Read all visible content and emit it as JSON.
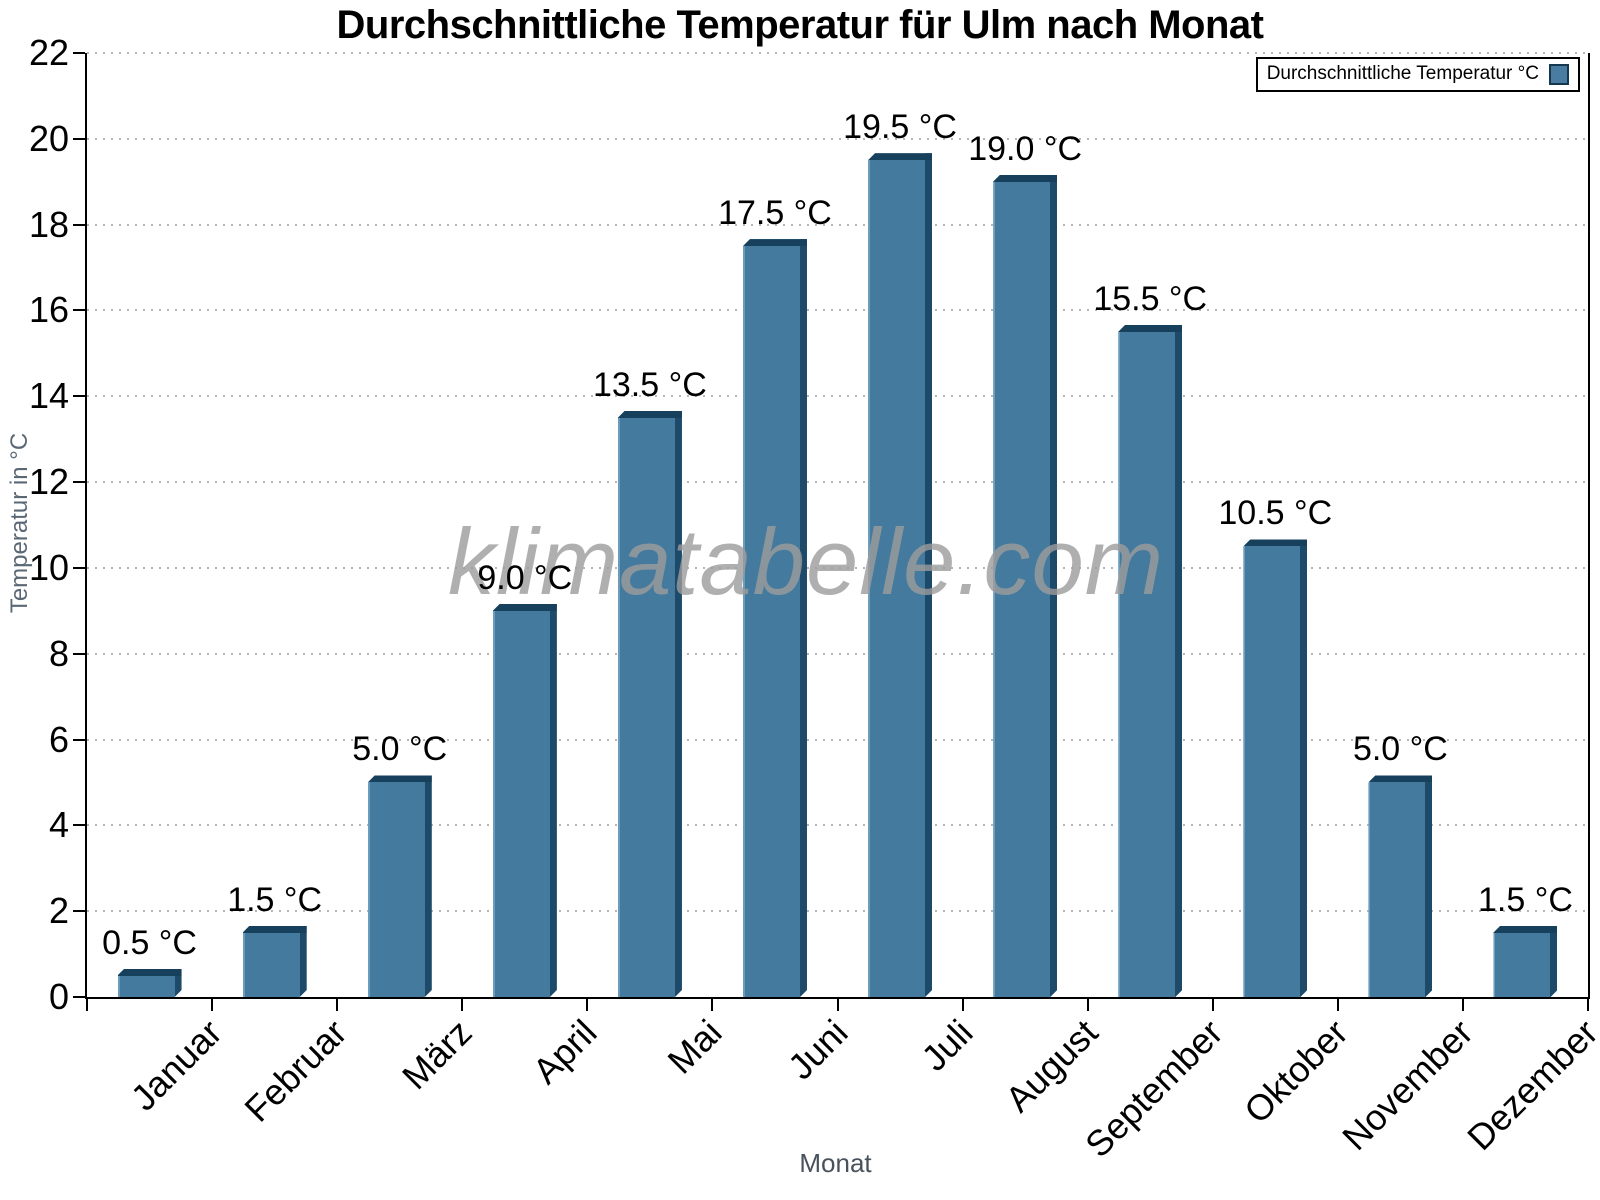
{
  "chart_data": {
    "type": "bar",
    "title": "Durchschnittliche Temperatur für Ulm nach Monat",
    "xlabel": "Monat",
    "ylabel": "Temperatur in °C",
    "legend": {
      "label": "Durchschnittliche Temperatur °C",
      "position": "top-right"
    },
    "categories": [
      "Januar",
      "Februar",
      "März",
      "April",
      "Mai",
      "Juni",
      "Juli",
      "August",
      "September",
      "Oktober",
      "November",
      "Dezember"
    ],
    "values": [
      0.5,
      1.5,
      5.0,
      9.0,
      13.5,
      17.5,
      19.5,
      19.0,
      15.5,
      10.5,
      5.0,
      1.5
    ],
    "value_labels": [
      "0.5 °C",
      "1.5 °C",
      "5.0 °C",
      "9.0 °C",
      "13.5 °C",
      "17.5 °C",
      "19.5 °C",
      "19.0 °C",
      "15.5 °C",
      "10.5 °C",
      "5.0 °C",
      "1.5 °C"
    ],
    "ylim": [
      0,
      22
    ],
    "ytick_step": 2,
    "grid": "dotted-horizontal",
    "x_tick_labels_rotation_deg": -45,
    "colors": {
      "bar_face": "#447A9E",
      "bar_left_highlight": "#6C9CBC",
      "bar_top_face": "#17405D",
      "bar_right_face": "#1E4A6A",
      "gridline": "#B6B6B6",
      "axis": "#000000",
      "axis_title_text": "#5A6875",
      "watermark_text": "#9C9C9C",
      "legend_swatch": "#4A7BA0"
    },
    "watermark": "klimatabelle.com"
  }
}
